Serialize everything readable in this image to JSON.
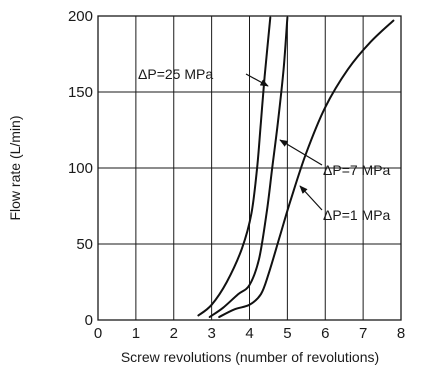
{
  "chart_data": {
    "type": "line",
    "xlabel": "Screw revolutions (number of revolutions)",
    "ylabel": "Flow rate (L/min)",
    "xlim": [
      0,
      8
    ],
    "ylim": [
      0,
      200
    ],
    "xticks": [
      "0",
      "1",
      "2",
      "3",
      "4",
      "5",
      "6",
      "7",
      "8"
    ],
    "yticks": [
      "0",
      "50",
      "100",
      "150",
      "200"
    ],
    "grid": true,
    "series": [
      {
        "name": "ΔP=25 MPa",
        "x": [
          2.65,
          3.0,
          3.4,
          3.8,
          4.05,
          4.2,
          4.3,
          4.4,
          4.55
        ],
        "y": [
          3,
          10,
          25,
          47,
          70,
          100,
          130,
          160,
          199
        ]
      },
      {
        "name": "ΔP=7 MPa",
        "x": [
          2.95,
          3.3,
          3.7,
          4.0,
          4.25,
          4.45,
          4.6,
          4.75,
          4.9,
          5.0
        ],
        "y": [
          2,
          8,
          17,
          23,
          40,
          70,
          100,
          130,
          165,
          199
        ]
      },
      {
        "name": "ΔP=1 MPa",
        "x": [
          3.2,
          3.6,
          4.0,
          4.3,
          4.5,
          4.8,
          5.1,
          5.5,
          6.0,
          6.6,
          7.2,
          7.8
        ],
        "y": [
          2,
          7,
          10,
          17,
          30,
          55,
          80,
          110,
          140,
          165,
          183,
          197
        ]
      }
    ]
  }
}
